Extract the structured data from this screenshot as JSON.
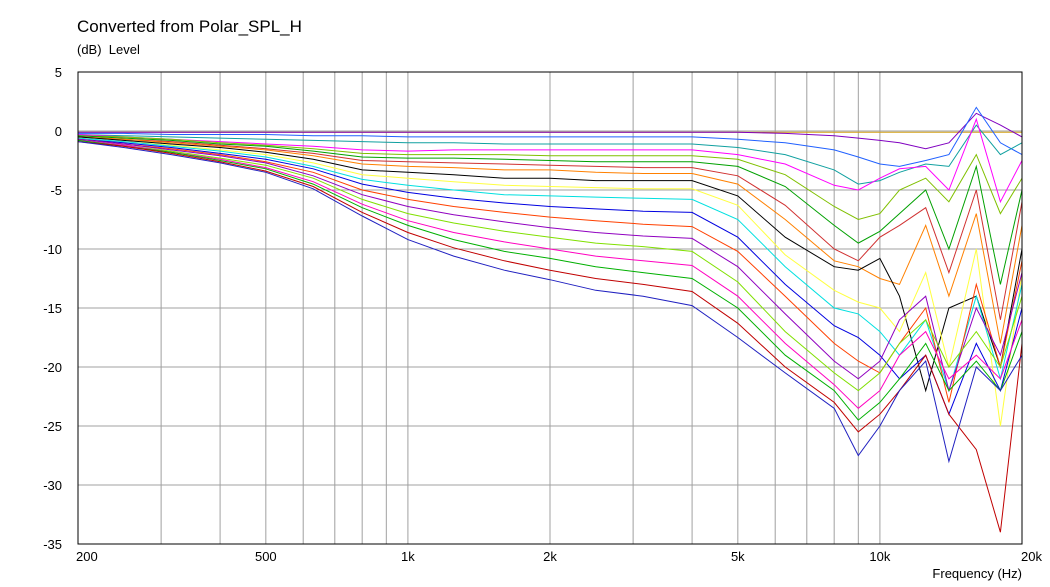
{
  "chart_data": {
    "type": "line",
    "title": "Converted from Polar_SPL_H",
    "ylabel_unit": "(dB)",
    "ylabel": "Level",
    "xlabel": "Frequency",
    "xlabel_unit": "(Hz)",
    "x_scale": "log",
    "xlim": [
      200,
      20000
    ],
    "ylim": [
      -35,
      5
    ],
    "y_ticks": [
      5,
      0,
      -5,
      -10,
      -15,
      -20,
      -25,
      -30,
      -35
    ],
    "x_tick_labels": [
      {
        "value": 200,
        "label": "200"
      },
      {
        "value": 500,
        "label": "500"
      },
      {
        "value": 1000,
        "label": "1k"
      },
      {
        "value": 2000,
        "label": "2k"
      },
      {
        "value": 5000,
        "label": "5k"
      },
      {
        "value": 10000,
        "label": "10k"
      },
      {
        "value": 20000,
        "label": "20k"
      }
    ],
    "x_gridlines": [
      200,
      300,
      400,
      500,
      600,
      700,
      800,
      900,
      1000,
      2000,
      3000,
      4000,
      5000,
      6000,
      7000,
      8000,
      9000,
      10000,
      20000
    ],
    "grid": true,
    "x_frequencies": [
      200,
      250,
      315,
      400,
      500,
      630,
      800,
      1000,
      1250,
      1600,
      2000,
      2500,
      3150,
      4000,
      5000,
      6300,
      8000,
      9000,
      10000,
      11000,
      12500,
      14000,
      16000,
      18000,
      20000
    ],
    "series": [
      {
        "color": "#d4a017",
        "values": [
          -0.1,
          -0.1,
          -0.1,
          -0.1,
          -0.1,
          -0.1,
          -0.1,
          -0.1,
          -0.1,
          -0.1,
          -0.1,
          -0.1,
          -0.1,
          -0.1,
          -0.1,
          -0.1,
          -0.1,
          -0.1,
          -0.1,
          -0.1,
          -0.1,
          -0.1,
          -0.1,
          -0.1,
          -0.1
        ]
      },
      {
        "color": "#8000c0",
        "values": [
          -0.1,
          -0.1,
          -0.1,
          -0.1,
          -0.1,
          -0.1,
          -0.1,
          -0.1,
          -0.1,
          -0.1,
          -0.1,
          -0.1,
          -0.1,
          -0.1,
          -0.1,
          -0.2,
          -0.4,
          -0.6,
          -0.8,
          -1.0,
          -1.5,
          -1.0,
          1.5,
          0.5,
          -0.5
        ]
      },
      {
        "color": "#2060ff",
        "values": [
          -0.2,
          -0.2,
          -0.3,
          -0.3,
          -0.3,
          -0.4,
          -0.4,
          -0.5,
          -0.5,
          -0.5,
          -0.5,
          -0.5,
          -0.5,
          -0.5,
          -0.7,
          -1.0,
          -1.6,
          -2.2,
          -2.8,
          -3.0,
          -2.5,
          -2.0,
          2.0,
          -1.0,
          -2.0
        ]
      },
      {
        "color": "#10a0a0",
        "values": [
          -0.3,
          -0.4,
          -0.5,
          -0.6,
          -0.7,
          -0.8,
          -0.9,
          -1.0,
          -1.0,
          -1.1,
          -1.1,
          -1.1,
          -1.1,
          -1.1,
          -1.4,
          -2.0,
          -3.3,
          -4.5,
          -4.2,
          -3.5,
          -2.8,
          -3.0,
          0.5,
          -2.0,
          -1.0
        ]
      },
      {
        "color": "#ff00ff",
        "values": [
          -0.3,
          -0.5,
          -0.7,
          -0.9,
          -1.1,
          -1.3,
          -1.6,
          -1.7,
          -1.6,
          -1.6,
          -1.6,
          -1.6,
          -1.6,
          -1.6,
          -2.0,
          -2.8,
          -4.6,
          -5.0,
          -4.0,
          -3.2,
          -3.0,
          -5.0,
          1.0,
          -6.0,
          -2.5
        ]
      },
      {
        "color": "#80c000",
        "values": [
          -0.4,
          -0.5,
          -0.7,
          -1.0,
          -1.2,
          -1.5,
          -1.9,
          -2.0,
          -2.0,
          -2.0,
          -2.1,
          -2.1,
          -2.1,
          -2.1,
          -2.4,
          -3.7,
          -6.4,
          -7.5,
          -7.0,
          -5.0,
          -4.0,
          -6.0,
          -2.0,
          -7.0,
          -4.0
        ]
      },
      {
        "color": "#00a000",
        "values": [
          -0.4,
          -0.6,
          -0.8,
          -1.1,
          -1.3,
          -1.7,
          -2.2,
          -2.3,
          -2.3,
          -2.4,
          -2.5,
          -2.6,
          -2.6,
          -2.6,
          -3.0,
          -4.7,
          -8.0,
          -9.5,
          -8.5,
          -7.0,
          -5.0,
          -10.0,
          -3.0,
          -13.0,
          -5.0
        ]
      },
      {
        "color": "#d03030",
        "values": [
          -0.5,
          -0.7,
          -0.9,
          -1.2,
          -1.5,
          -1.9,
          -2.5,
          -2.6,
          -2.7,
          -2.8,
          -2.9,
          -3.0,
          -3.1,
          -3.1,
          -3.8,
          -6.3,
          -10.0,
          -11.0,
          -9.0,
          -8.0,
          -6.5,
          -12.0,
          -5.0,
          -16.0,
          -6.0
        ]
      },
      {
        "color": "#ff8000",
        "values": [
          -0.5,
          -0.7,
          -1.0,
          -1.3,
          -1.6,
          -2.1,
          -2.8,
          -3.0,
          -3.1,
          -3.3,
          -3.3,
          -3.5,
          -3.6,
          -3.6,
          -4.5,
          -7.5,
          -11.0,
          -11.5,
          -12.5,
          -13.0,
          -8.0,
          -14.0,
          -7.0,
          -18.0,
          -8.0
        ]
      },
      {
        "color": "#000000",
        "values": [
          -0.5,
          -0.8,
          -1.1,
          -1.4,
          -1.8,
          -2.4,
          -3.3,
          -3.5,
          -3.7,
          -4.0,
          -4.0,
          -4.2,
          -4.2,
          -4.2,
          -5.5,
          -9.0,
          -11.5,
          -11.8,
          -10.8,
          -14.0,
          -22.0,
          -15.0,
          -14.0,
          -20.0,
          -10.0
        ]
      },
      {
        "color": "#ffff40",
        "values": [
          -0.6,
          -0.9,
          -1.2,
          -1.6,
          -2.0,
          -2.7,
          -3.7,
          -4.0,
          -4.3,
          -4.6,
          -4.7,
          -4.8,
          -4.9,
          -4.9,
          -6.3,
          -10.5,
          -13.5,
          -14.5,
          -15.0,
          -17.0,
          -12.0,
          -20.0,
          -10.0,
          -25.0,
          -12.0
        ]
      },
      {
        "color": "#00e0e0",
        "values": [
          -0.6,
          -0.9,
          -1.3,
          -1.7,
          -2.2,
          -3.0,
          -4.1,
          -4.6,
          -5.0,
          -5.4,
          -5.5,
          -5.6,
          -5.7,
          -5.8,
          -7.5,
          -11.5,
          -15.0,
          -15.5,
          -17.0,
          -19.0,
          -16.0,
          -22.0,
          -14.0,
          -21.0,
          -13.0
        ]
      },
      {
        "color": "#0000e0",
        "values": [
          -0.7,
          -1.0,
          -1.4,
          -1.9,
          -2.4,
          -3.2,
          -4.5,
          -5.2,
          -5.7,
          -6.1,
          -6.4,
          -6.6,
          -6.8,
          -6.9,
          -9.0,
          -13.0,
          -16.5,
          -17.5,
          -19.0,
          -21.0,
          -19.0,
          -24.0,
          -18.0,
          -22.0,
          -15.0
        ]
      },
      {
        "color": "#ff4000",
        "values": [
          -0.7,
          -1.1,
          -1.5,
          -2.0,
          -2.6,
          -3.5,
          -5.0,
          -5.8,
          -6.4,
          -6.9,
          -7.3,
          -7.6,
          -7.9,
          -8.1,
          -10.2,
          -14.0,
          -18.0,
          -19.5,
          -20.5,
          -18.0,
          -15.0,
          -23.0,
          -13.0,
          -20.0,
          -11.0
        ]
      },
      {
        "color": "#9000c0",
        "values": [
          -0.7,
          -1.1,
          -1.6,
          -2.1,
          -2.7,
          -3.8,
          -5.4,
          -6.4,
          -7.1,
          -7.7,
          -8.2,
          -8.6,
          -8.9,
          -9.1,
          -11.5,
          -15.5,
          -19.5,
          -21.0,
          -19.5,
          -16.0,
          -14.0,
          -22.0,
          -15.0,
          -19.0,
          -12.0
        ]
      },
      {
        "color": "#80e000",
        "values": [
          -0.8,
          -1.2,
          -1.7,
          -2.3,
          -2.9,
          -4.0,
          -5.8,
          -7.0,
          -7.8,
          -8.5,
          -9.0,
          -9.5,
          -9.8,
          -10.2,
          -12.8,
          -17.0,
          -20.5,
          -22.0,
          -20.5,
          -18.0,
          -16.0,
          -20.0,
          -17.0,
          -20.0,
          -14.0
        ]
      },
      {
        "color": "#ff00c0",
        "values": [
          -0.8,
          -1.2,
          -1.8,
          -2.4,
          -3.1,
          -4.3,
          -6.2,
          -7.6,
          -8.6,
          -9.4,
          -10.0,
          -10.6,
          -11.0,
          -11.4,
          -14.0,
          -18.0,
          -21.5,
          -23.5,
          -22.0,
          -19.0,
          -17.0,
          -21.0,
          -19.0,
          -21.0,
          -16.0
        ]
      },
      {
        "color": "#00b000",
        "values": [
          -0.8,
          -1.3,
          -1.8,
          -2.5,
          -3.2,
          -4.5,
          -6.5,
          -8.0,
          -9.2,
          -10.2,
          -10.8,
          -11.5,
          -12.0,
          -12.5,
          -15.0,
          -19.0,
          -22.0,
          -24.5,
          -23.0,
          -21.0,
          -18.0,
          -22.0,
          -19.5,
          -22.0,
          -17.0
        ]
      },
      {
        "color": "#c00000",
        "values": [
          -0.9,
          -1.3,
          -1.9,
          -2.6,
          -3.4,
          -4.7,
          -6.9,
          -8.6,
          -9.9,
          -11.0,
          -11.8,
          -12.5,
          -13.0,
          -13.6,
          -16.3,
          -20.0,
          -23.0,
          -25.5,
          -24.0,
          -22.0,
          -19.0,
          -24.0,
          -27.0,
          -34.0,
          -18.0
        ]
      },
      {
        "color": "#2020c0",
        "values": [
          -0.9,
          -1.4,
          -2.0,
          -2.7,
          -3.5,
          -4.9,
          -7.2,
          -9.2,
          -10.6,
          -11.8,
          -12.6,
          -13.5,
          -14.0,
          -14.8,
          -17.5,
          -20.5,
          -23.5,
          -27.5,
          -25.0,
          -22.0,
          -19.5,
          -28.0,
          -20.0,
          -22.0,
          -19.0
        ]
      }
    ]
  }
}
